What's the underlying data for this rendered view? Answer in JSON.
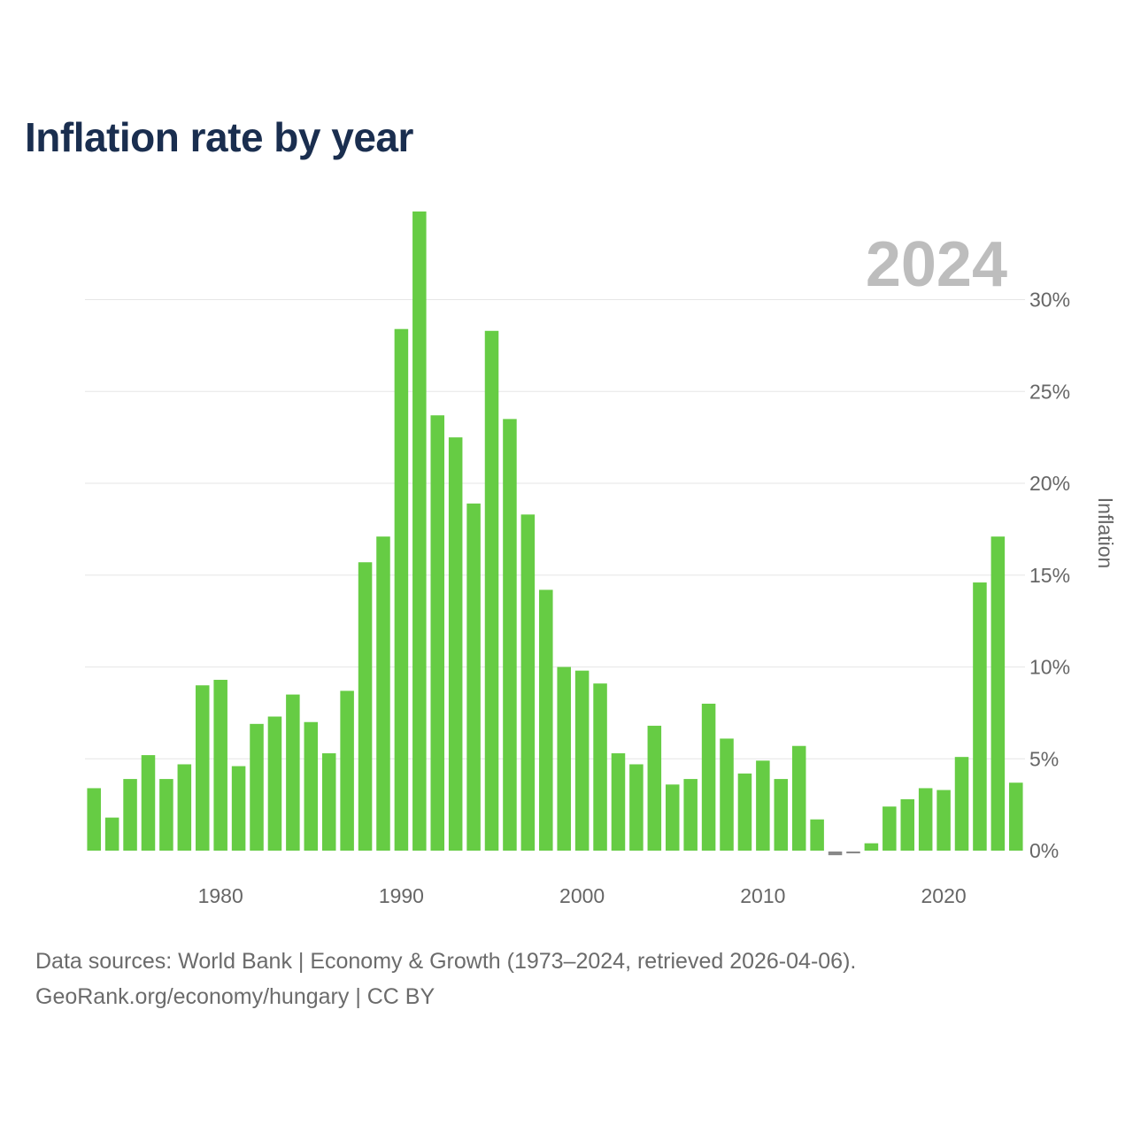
{
  "chart_data": {
    "type": "bar",
    "title": "Inflation rate by year",
    "highlight_label": "2024",
    "ylabel": "Inflation",
    "xlabel": "",
    "ylim": [
      -0.3,
      34.8
    ],
    "xlim": [
      1972.5,
      2024.5
    ],
    "yticks": [
      0,
      5,
      10,
      15,
      20,
      25,
      30
    ],
    "ytick_labels": [
      "0%",
      "5%",
      "10%",
      "15%",
      "20%",
      "25%",
      "30%"
    ],
    "xticks": [
      1980,
      1990,
      2000,
      2010,
      2020
    ],
    "xtick_labels": [
      "1980",
      "1990",
      "2000",
      "2010",
      "2020"
    ],
    "positive_color": "#66cc44",
    "negative_color": "#888888",
    "grid": true,
    "years": [
      1973,
      1974,
      1975,
      1976,
      1977,
      1978,
      1979,
      1980,
      1981,
      1982,
      1983,
      1984,
      1985,
      1986,
      1987,
      1988,
      1989,
      1990,
      1991,
      1992,
      1993,
      1994,
      1995,
      1996,
      1997,
      1998,
      1999,
      2000,
      2001,
      2002,
      2003,
      2004,
      2005,
      2006,
      2007,
      2008,
      2009,
      2010,
      2011,
      2012,
      2013,
      2014,
      2015,
      2016,
      2017,
      2018,
      2019,
      2020,
      2021,
      2022,
      2023,
      2024
    ],
    "values": [
      3.4,
      1.8,
      3.9,
      5.2,
      3.9,
      4.7,
      9.0,
      9.3,
      4.6,
      6.9,
      7.3,
      8.5,
      7.0,
      5.3,
      8.7,
      15.7,
      17.1,
      28.4,
      34.8,
      23.7,
      22.5,
      18.9,
      28.3,
      23.5,
      18.3,
      14.2,
      10.0,
      9.8,
      9.1,
      5.3,
      4.7,
      6.8,
      3.6,
      3.9,
      8.0,
      6.1,
      4.2,
      4.9,
      3.9,
      5.7,
      1.7,
      -0.2,
      -0.1,
      0.4,
      2.4,
      2.8,
      3.4,
      3.3,
      5.1,
      14.6,
      17.1,
      3.7
    ]
  },
  "footer": {
    "line1": "Data sources: World Bank | Economy & Growth (1973–2024, retrieved 2026-04-06).",
    "line2": "GeoRank.org/economy/hungary | CC BY"
  }
}
